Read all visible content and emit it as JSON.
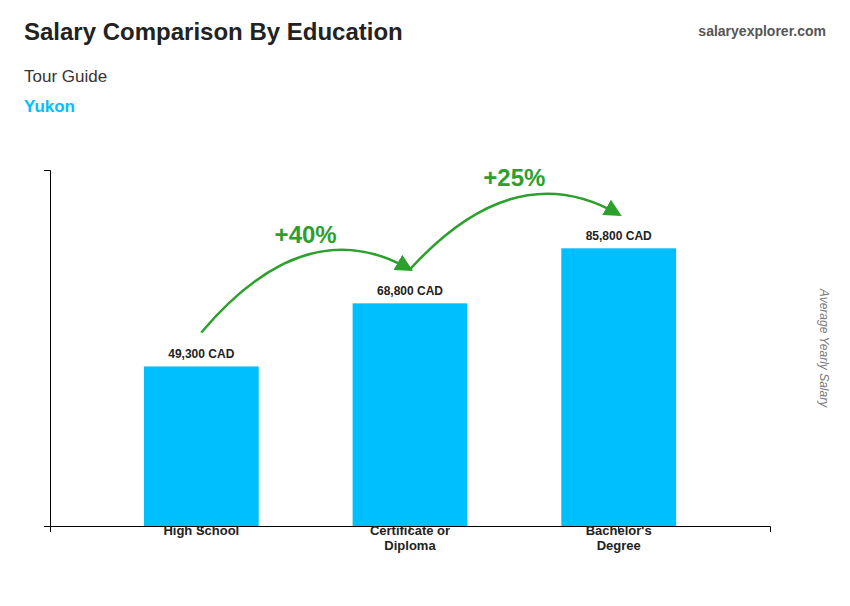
{
  "chart_data": {
    "type": "bar",
    "title": "Salary Comparison By Education",
    "subtitle": "Tour Guide",
    "subtitle2": "Yukon",
    "source": "salaryexplorer.com",
    "y_label": "Average Yearly Salary",
    "categories": [
      "High School",
      "Certificate or\nDiploma",
      "Bachelor's\nDegree"
    ],
    "values": [
      49300,
      68800,
      85800
    ],
    "value_labels": [
      "49,300 CAD",
      "68,800 CAD",
      "85,800 CAD"
    ],
    "data_labels": true,
    "annotations": [
      "+40%",
      "+25%"
    ],
    "color": "#00BFFF",
    "ylim": [
      0,
      110000
    ],
    "grid": false,
    "tick_labels": "x"
  }
}
